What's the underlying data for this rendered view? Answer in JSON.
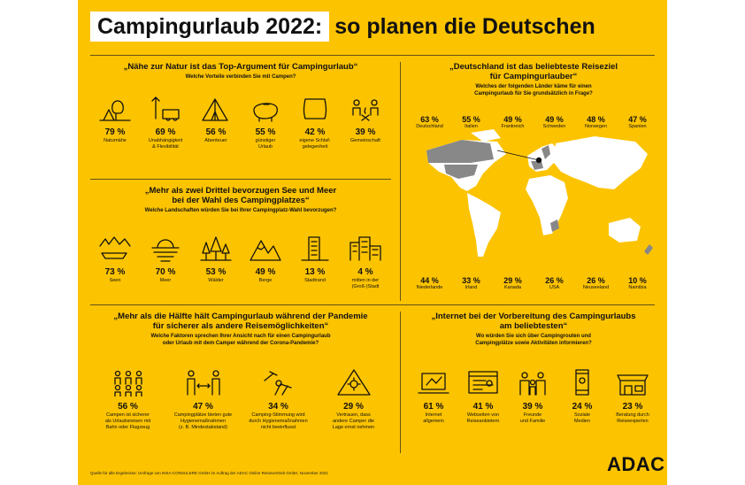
{
  "title": {
    "highlight": "Campingurlaub 2022:",
    "rest": "so planen die Deutschen"
  },
  "section_nature": {
    "heading": "„Nähe zur Natur ist das Top-Argument für Campingurlaub“",
    "question": "Welche Vorteile verbinden Sie mit Campen?",
    "items": [
      {
        "pct": "79 %",
        "label": "Naturnähe",
        "icon": "tree-landscape-icon"
      },
      {
        "pct": "69 %",
        "label": "Unabhängigkeit\n& Flexibilität",
        "icon": "camper-route-icon"
      },
      {
        "pct": "56 %",
        "label": "Abenteuer",
        "icon": "tent-icon"
      },
      {
        "pct": "55 %",
        "label": "günstiger\nUrlaub",
        "icon": "piggy-bank-icon"
      },
      {
        "pct": "42 %",
        "label": "eigene Schlaf-\ngelegenheit",
        "icon": "pillow-icon"
      },
      {
        "pct": "39 %",
        "label": "Gemeinschaft",
        "icon": "campfire-people-icon"
      }
    ]
  },
  "section_lake": {
    "heading_line1": "„Mehr als zwei Drittel bevorzugen See und Meer",
    "heading_line2": "bei der Wahl des Campingplatzes“",
    "question": "Welche Landschaften würden Sie bei Ihrer Campingplatz-Wahl bevorzugen?",
    "items": [
      {
        "pct": "73 %",
        "label": "Seen",
        "icon": "lake-boat-icon"
      },
      {
        "pct": "70 %",
        "label": "Meer",
        "icon": "sea-sun-icon"
      },
      {
        "pct": "53 %",
        "label": "Wälder",
        "icon": "forest-icon"
      },
      {
        "pct": "49 %",
        "label": "Berge",
        "icon": "mountains-icon"
      },
      {
        "pct": "13 %",
        "label": "Stadtrand",
        "icon": "town-edge-icon"
      },
      {
        "pct": "4 %",
        "label": "mitten in der\n(Groß-)Stadt",
        "icon": "city-icon"
      }
    ]
  },
  "section_pandemic": {
    "heading_line1": "„Mehr als die Hälfte hält Campingurlaub während der Pandemie",
    "heading_line2": "für sicherer als andere Reisemöglichkeiten“",
    "question_line1": "Welche Faktoren sprechen Ihrer Ansicht nach für einen Campingurlaub",
    "question_line2": "oder Urlaub mit dem Camper während der Corona-Pandemie?",
    "items": [
      {
        "pct": "56 %",
        "label": "Campen ist sicherer\nals Urlaubsreisen mit\nBahn oder Flugzeug",
        "icon": "crowd-icon"
      },
      {
        "pct": "47 %",
        "label": "Campingplätze bieten gute\nHygienemaßnahmen\n(z. B. Mindestabstand)",
        "icon": "distance-icon"
      },
      {
        "pct": "34 %",
        "label": "Camping-Stimmung wird\ndurch Hygienemaßnahmen\nnicht beeinflusst",
        "icon": "relax-chair-icon"
      },
      {
        "pct": "29 %",
        "label": "Vertrauen, dass\nandere Camper die\nLage ernst nehmen",
        "icon": "virus-warning-icon"
      }
    ]
  },
  "section_germany": {
    "heading_line1": "„Deutschland ist das beliebteste Reiseziel",
    "heading_line2": "für Campingurlauber“",
    "question_line1": "Welches der folgenden Länder käme für einen",
    "question_line2": "Campingurlaub für Sie grundsätzlich in Frage?",
    "top": [
      {
        "pct": "63 %",
        "label": "Deutschland"
      },
      {
        "pct": "55 %",
        "label": "Italien"
      },
      {
        "pct": "49 %",
        "label": "Frankreich"
      },
      {
        "pct": "49 %",
        "label": "Schweden"
      },
      {
        "pct": "48 %",
        "label": "Norwegen"
      },
      {
        "pct": "47 %",
        "label": "Spanien"
      }
    ],
    "bottom": [
      {
        "pct": "44 %",
        "label": "Niederlande"
      },
      {
        "pct": "33 %",
        "label": "Irland"
      },
      {
        "pct": "29 %",
        "label": "Kanada"
      },
      {
        "pct": "26 %",
        "label": "USA"
      },
      {
        "pct": "26 %",
        "label": "Neuseeland"
      },
      {
        "pct": "10 %",
        "label": "Namibia"
      }
    ]
  },
  "section_internet": {
    "heading_line1": "„Internet bei der Vorbereitung des Campingurlaubs",
    "heading_line2": "am beliebtesten“",
    "question_line1": "Wo würden Sie sich über Campingrouten und",
    "question_line2": "Campingplätze sowie Aktivitäten informieren?",
    "items": [
      {
        "pct": "61 %",
        "label": "Internet\nallgemein",
        "icon": "laptop-route-icon"
      },
      {
        "pct": "41 %",
        "label": "Webseiten von\nReiseanbietern",
        "icon": "website-icon"
      },
      {
        "pct": "39 %",
        "label": "Freunde\nund Familie",
        "icon": "family-icon"
      },
      {
        "pct": "24 %",
        "label": "Soziale\nMedien",
        "icon": "smartphone-icon"
      },
      {
        "pct": "23 %",
        "label": "Beratung durch\nReiseexperten",
        "icon": "travel-agency-icon"
      }
    ]
  },
  "source": "Quelle für alle Ergebnisse: Umfrage von INSA-CONSULERE GmbH im Auftrag der ADAC Online Reisevertrieb GmbH, November 2021",
  "logo": "ADAC",
  "colors": {
    "background": "#fcc300",
    "ink": "#111111",
    "map_land": "#ffffff",
    "map_highlight": "#888888"
  }
}
